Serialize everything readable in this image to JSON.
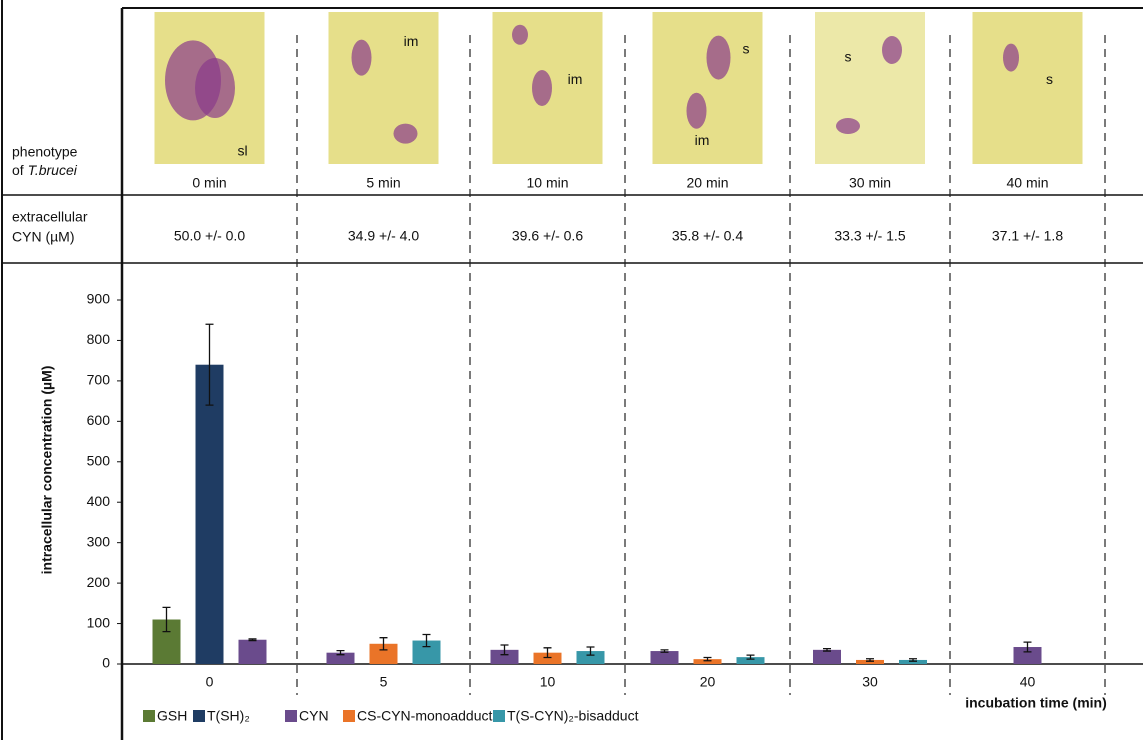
{
  "phenotype": {
    "label_line1": "phenotype",
    "label_line2_prefix": "of",
    "label_line2_italic": "T.brucei",
    "panels": [
      {
        "time": "0 min",
        "marks": [
          "sl"
        ]
      },
      {
        "time": "5 min",
        "marks": [
          "im"
        ]
      },
      {
        "time": "10 min",
        "marks": [
          "im"
        ]
      },
      {
        "time": "20 min",
        "marks": [
          "s",
          "im"
        ]
      },
      {
        "time": "30 min",
        "marks": [
          "s"
        ]
      },
      {
        "time": "40 min",
        "marks": [
          "s"
        ]
      }
    ]
  },
  "extracellular": {
    "label_line1": "extracellular",
    "label_line2": "CYN  (µM)",
    "values": [
      "50.0 +/- 0.0",
      "34.9 +/- 4.0",
      "39.6 +/- 0.6",
      "35.8 +/- 0.4",
      "33.3 +/- 1.5",
      "37.1 +/- 1.8"
    ]
  },
  "chart_data": {
    "type": "bar",
    "y_label": "intracellular concentration (µM)",
    "x_label": "incubation time (min)",
    "categories": [
      "0",
      "5",
      "10",
      "20",
      "30",
      "40"
    ],
    "ylim": [
      0,
      900
    ],
    "yticks": [
      0,
      100,
      200,
      300,
      400,
      500,
      600,
      700,
      800,
      900
    ],
    "series": [
      {
        "name": "GSH",
        "color": "#5b7a34",
        "values": [
          110,
          null,
          null,
          null,
          null,
          null
        ],
        "errors": [
          30,
          null,
          null,
          null,
          null,
          null
        ]
      },
      {
        "name": "T(SH)₂",
        "color": "#1f3c63",
        "values": [
          740,
          null,
          null,
          null,
          null,
          null
        ],
        "errors": [
          100,
          null,
          null,
          null,
          null,
          null
        ]
      },
      {
        "name": "CYN",
        "color": "#6a4b8c",
        "values": [
          60,
          28,
          35,
          32,
          35,
          42
        ],
        "errors": [
          2,
          5,
          12,
          3,
          3,
          12
        ]
      },
      {
        "name": "CS-CYN-monoadduct",
        "color": "#ea7428",
        "values": [
          null,
          50,
          28,
          12,
          10,
          null
        ],
        "errors": [
          null,
          15,
          12,
          4,
          3,
          null
        ]
      },
      {
        "name": "T(S-CYN)₂-bisadduct",
        "color": "#3797a8",
        "values": [
          null,
          58,
          32,
          17,
          10,
          null
        ],
        "errors": [
          null,
          15,
          10,
          5,
          3,
          null
        ]
      }
    ]
  }
}
